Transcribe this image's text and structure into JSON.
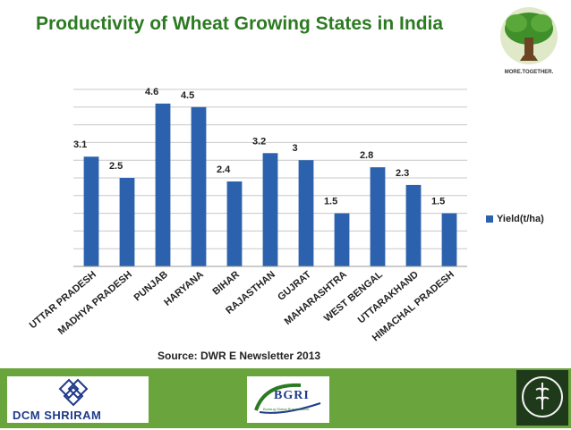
{
  "slide": {
    "title": "Productivity of Wheat Growing States in India",
    "source": "Source: DWR E Newsletter 2013"
  },
  "logos": {
    "tree_tagline": "MORE.TOGETHER.",
    "dcm": "DCM SHRIRAM",
    "bgri": "BGRI",
    "bgri_sub": "Borlaug Global Rust Initiative"
  },
  "colors": {
    "bar": "#2c62ad",
    "title": "#2c7a22",
    "footer": "#6aa43c",
    "grid": "#c8c8c8"
  },
  "chart_data": {
    "type": "bar",
    "categories": [
      "UTTAR PRADESH",
      "MADHYA PRADESH",
      "PUNJAB",
      "HARYANA",
      "BIHAR",
      "RAJASTHAN",
      "GUJRAT",
      "MAHARASHTRA",
      "WEST BENGAL",
      "UTTARAKHAND",
      "HIMACHAL PRADESH"
    ],
    "series": [
      {
        "name": "Yield(t/ha)",
        "values": [
          3.1,
          2.5,
          4.6,
          4.5,
          2.4,
          3.2,
          3.0,
          1.5,
          2.8,
          2.3,
          1.5
        ]
      }
    ],
    "data_labels": [
      "3.1",
      "2.5",
      "4.6",
      "4.5",
      "2.4",
      "3.2",
      "3",
      "1.5",
      "2.8",
      "2.3",
      "1.5"
    ],
    "ylim": [
      0,
      5
    ],
    "grid": true,
    "legend_position": "right"
  }
}
